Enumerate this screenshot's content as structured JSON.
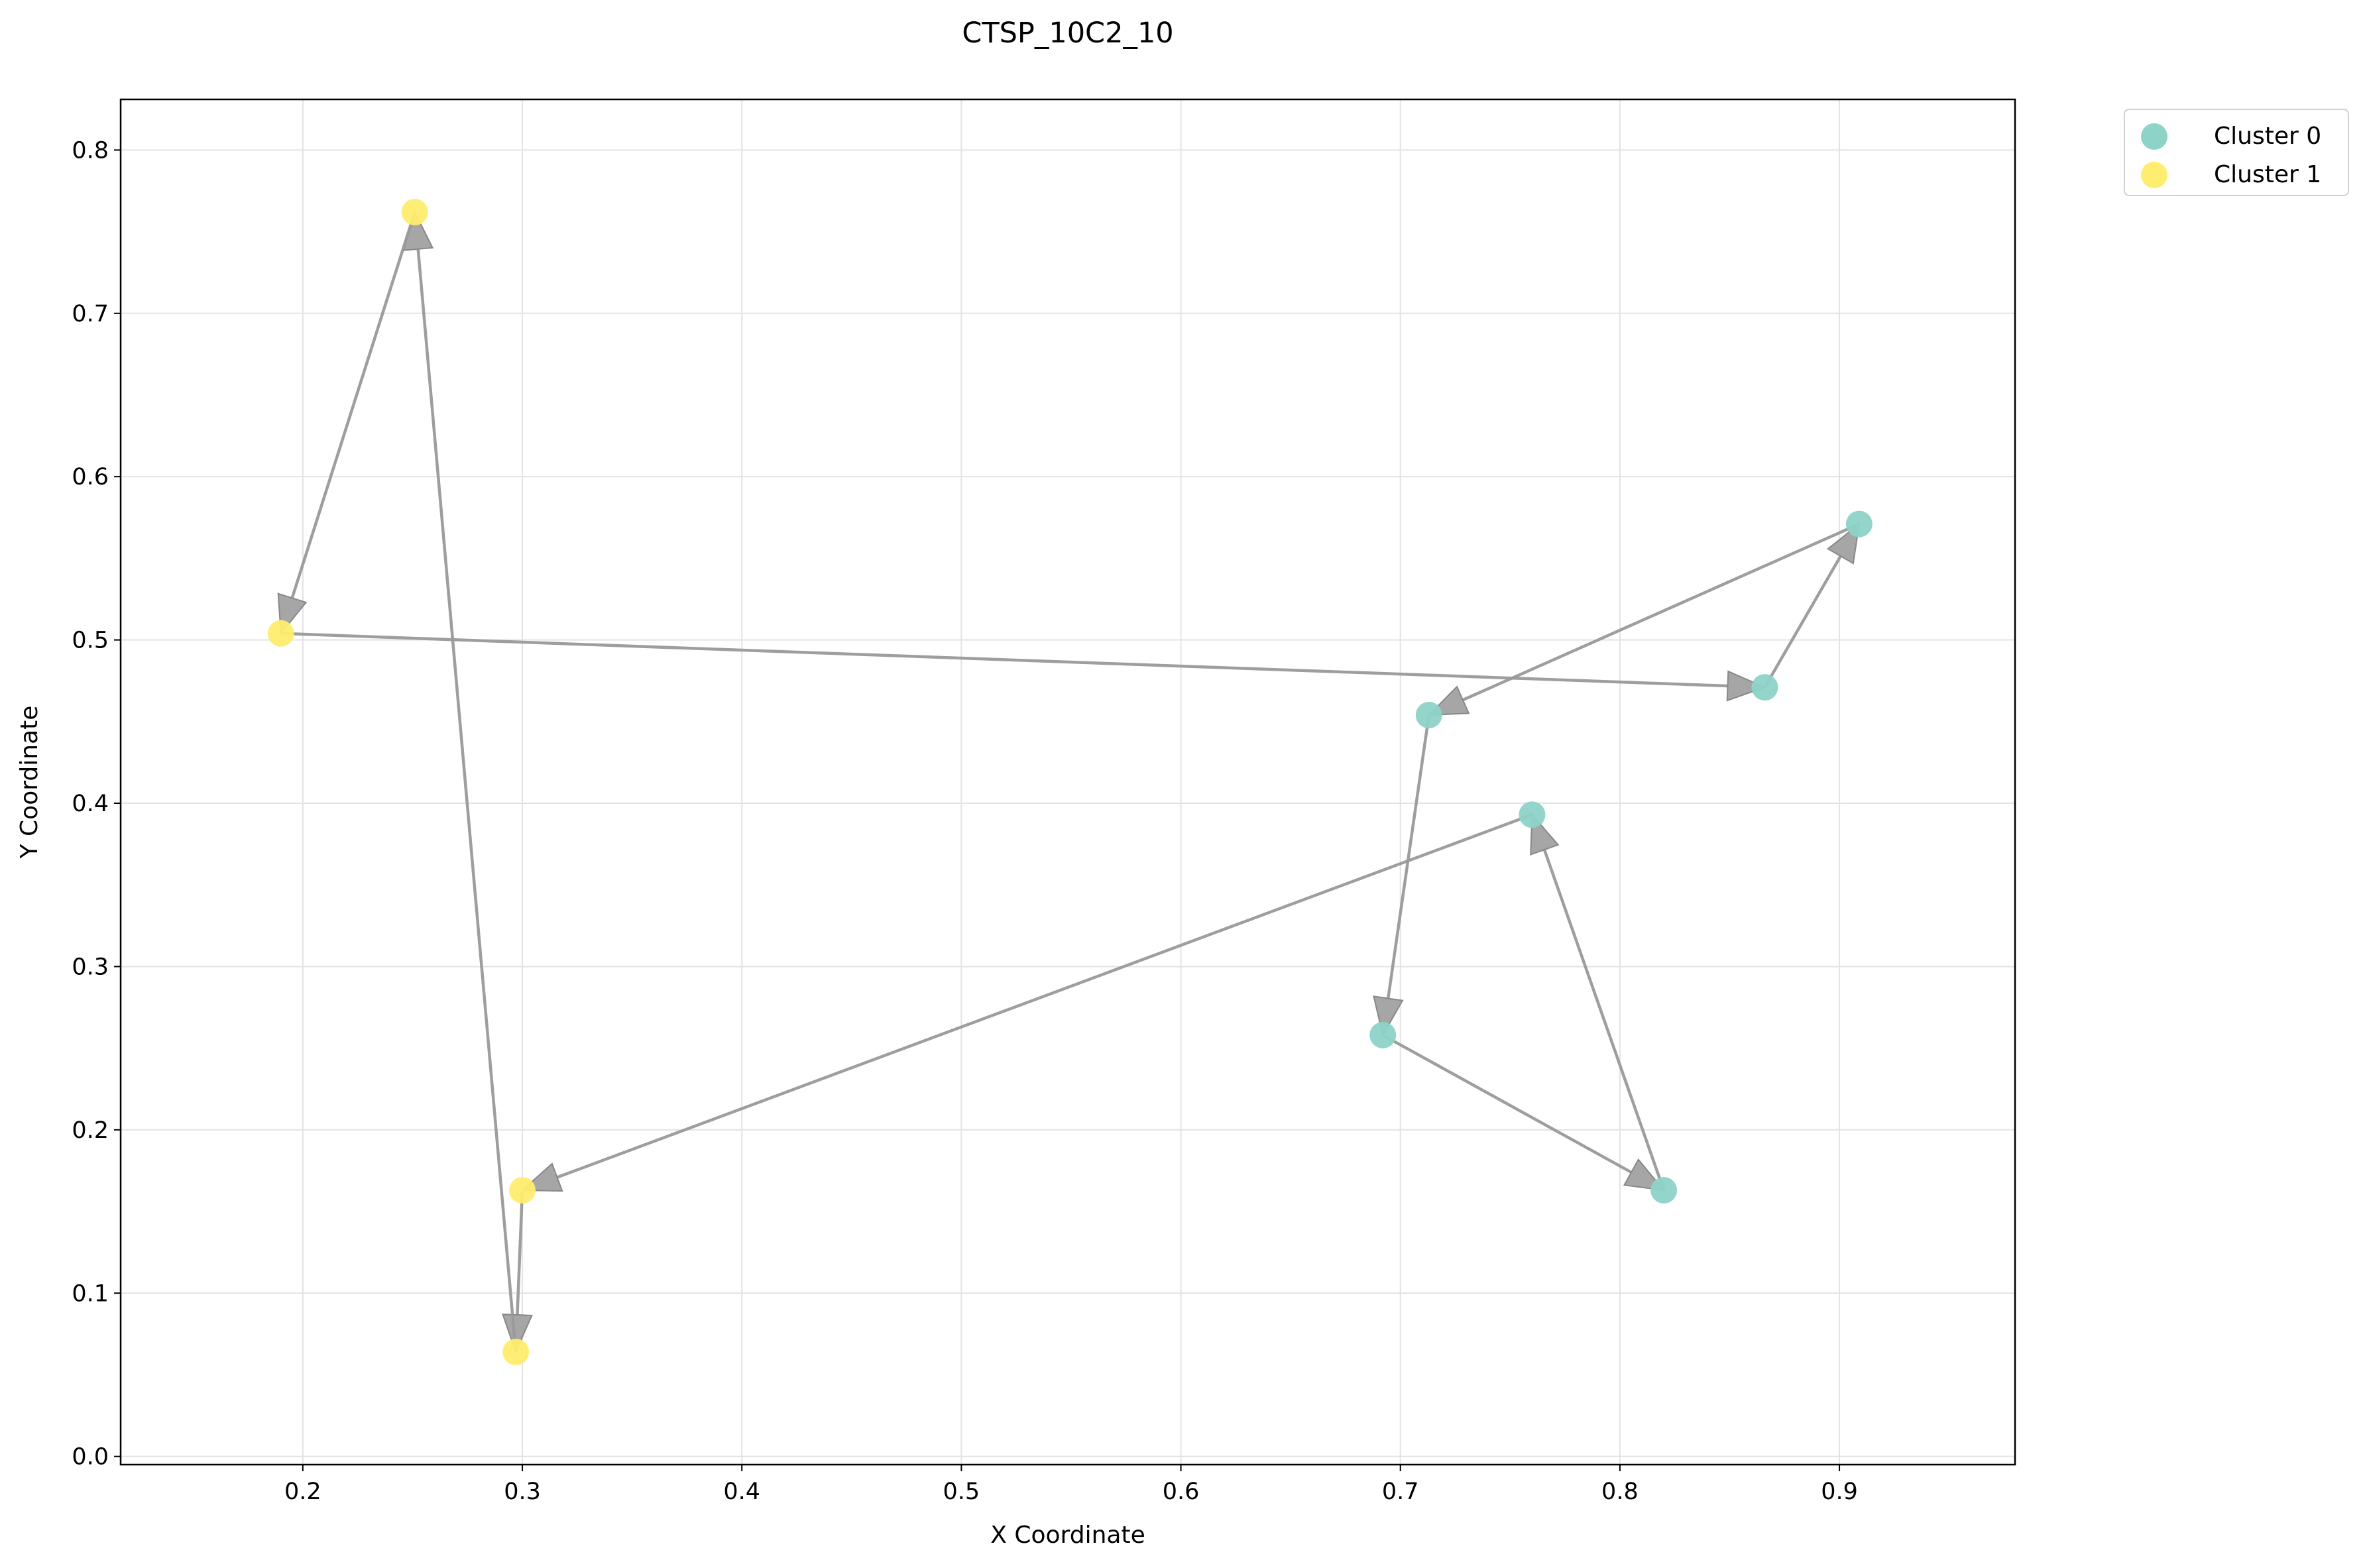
{
  "chart_data": {
    "type": "scatter",
    "title": "CTSP_10C2_10",
    "xlabel": "X Coordinate",
    "ylabel": "Y Coordinate",
    "xlim": [
      0.117,
      0.98
    ],
    "ylim": [
      -0.005,
      0.831
    ],
    "xticks": [
      0.2,
      0.3,
      0.4,
      0.5,
      0.6,
      0.7,
      0.8,
      0.9
    ],
    "xtick_labels": [
      "0.2",
      "0.3",
      "0.4",
      "0.5",
      "0.6",
      "0.7",
      "0.8",
      "0.9"
    ],
    "yticks": [
      0.0,
      0.1,
      0.2,
      0.3,
      0.4,
      0.5,
      0.6,
      0.7,
      0.8
    ],
    "ytick_labels": [
      "0.0",
      "0.1",
      "0.2",
      "0.3",
      "0.4",
      "0.5",
      "0.6",
      "0.7",
      "0.8"
    ],
    "grid": true,
    "legend_position": "outside-top-right",
    "series": [
      {
        "name": "Cluster 0",
        "color": "#8dd3c7",
        "points": [
          {
            "x": 0.866,
            "y": 0.471
          },
          {
            "x": 0.909,
            "y": 0.571
          },
          {
            "x": 0.713,
            "y": 0.454
          },
          {
            "x": 0.692,
            "y": 0.258
          },
          {
            "x": 0.82,
            "y": 0.163
          },
          {
            "x": 0.76,
            "y": 0.393
          }
        ]
      },
      {
        "name": "Cluster 1",
        "color": "#ffed6f",
        "points": [
          {
            "x": 0.251,
            "y": 0.762
          },
          {
            "x": 0.19,
            "y": 0.504
          },
          {
            "x": 0.3,
            "y": 0.163
          },
          {
            "x": 0.297,
            "y": 0.064
          }
        ]
      }
    ],
    "tour": [
      {
        "x": 0.19,
        "y": 0.504
      },
      {
        "x": 0.866,
        "y": 0.471
      },
      {
        "x": 0.909,
        "y": 0.571
      },
      {
        "x": 0.713,
        "y": 0.454
      },
      {
        "x": 0.692,
        "y": 0.258
      },
      {
        "x": 0.82,
        "y": 0.163
      },
      {
        "x": 0.76,
        "y": 0.393
      },
      {
        "x": 0.3,
        "y": 0.163
      },
      {
        "x": 0.297,
        "y": 0.064
      },
      {
        "x": 0.251,
        "y": 0.762
      },
      {
        "x": 0.19,
        "y": 0.504
      }
    ],
    "tour_color": "#999999"
  }
}
